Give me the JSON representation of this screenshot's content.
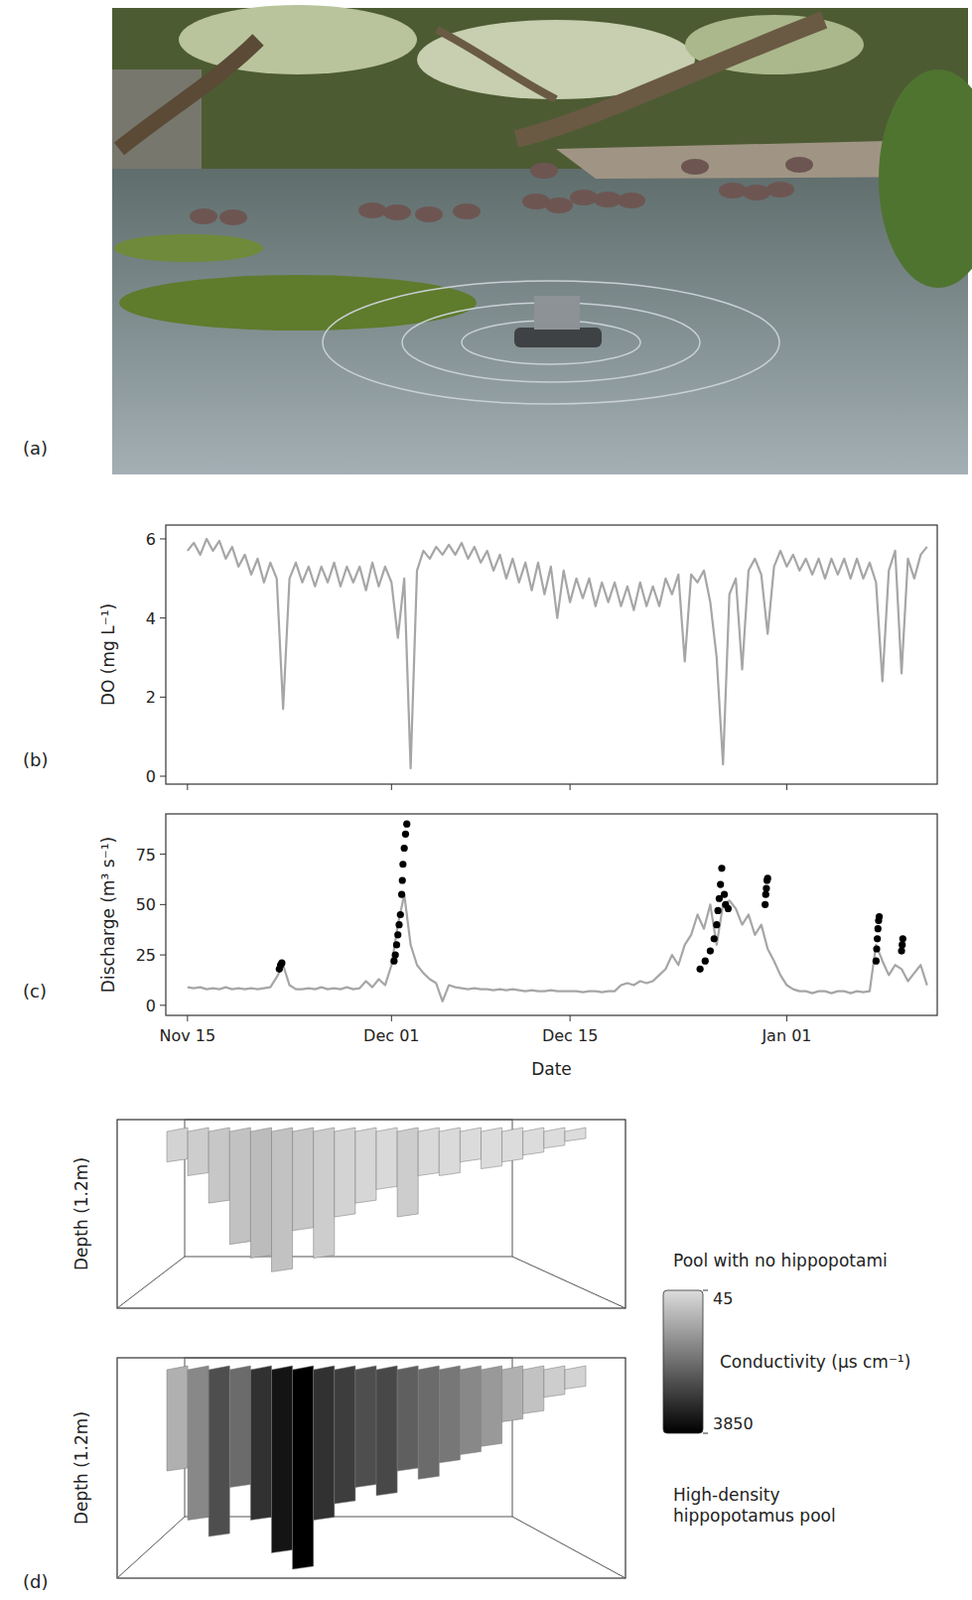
{
  "photo": {
    "panel": "(a)"
  },
  "chart_data": [
    {
      "type": "line",
      "panel": "(b)",
      "y_label": "DO (mg L⁻¹)",
      "xlim": [
        -1.7,
        58.8
      ],
      "xticks": [
        0,
        16,
        30,
        47
      ],
      "ylim": [
        -0.2,
        6.35
      ],
      "yticks": [
        0,
        2,
        4,
        6
      ],
      "tick_labels": "y",
      "series": [
        {
          "type": "line",
          "color": "#a6a6a6",
          "x": [
            0,
            0.5,
            1,
            1.5,
            2,
            2.5,
            3,
            3.5,
            4,
            4.5,
            5,
            5.5,
            6,
            6.5,
            7,
            7.5,
            8,
            8.5,
            9,
            9.5,
            10,
            10.5,
            11,
            11.5,
            12,
            12.5,
            13,
            13.5,
            14,
            14.5,
            15,
            15.5,
            16,
            16.5,
            17,
            17.5,
            18,
            18.5,
            19,
            19.5,
            20,
            20.5,
            21,
            21.5,
            22,
            22.5,
            23,
            23.5,
            24,
            24.5,
            25,
            25.5,
            26,
            26.5,
            27,
            27.5,
            28,
            28.5,
            29,
            29.5,
            30,
            30.5,
            31,
            31.5,
            32,
            32.5,
            33,
            33.5,
            34,
            34.5,
            35,
            35.5,
            36,
            36.5,
            37,
            37.5,
            38,
            38.5,
            39,
            39.5,
            40,
            40.5,
            41,
            41.5,
            42,
            42.5,
            43,
            43.5,
            44,
            44.5,
            45,
            45.5,
            46,
            46.5,
            47,
            47.5,
            48,
            48.5,
            49,
            49.5,
            50,
            50.5,
            51,
            51.5,
            52,
            52.5,
            53,
            53.5,
            54,
            54.5,
            55,
            55.5,
            56,
            56.5,
            57,
            57.5,
            58
          ],
          "values": [
            5.7,
            5.9,
            5.6,
            6.0,
            5.7,
            5.95,
            5.5,
            5.8,
            5.3,
            5.6,
            5.1,
            5.5,
            4.9,
            5.4,
            5.0,
            1.7,
            5.0,
            5.4,
            4.9,
            5.3,
            4.8,
            5.3,
            4.9,
            5.4,
            4.8,
            5.3,
            4.9,
            5.3,
            4.7,
            5.4,
            4.8,
            5.3,
            4.9,
            3.5,
            5.0,
            0.2,
            5.2,
            5.7,
            5.5,
            5.8,
            5.6,
            5.85,
            5.6,
            5.9,
            5.5,
            5.8,
            5.4,
            5.7,
            5.2,
            5.6,
            5.0,
            5.5,
            4.9,
            5.4,
            4.7,
            5.4,
            4.6,
            5.3,
            4.0,
            5.2,
            4.4,
            5.0,
            4.5,
            5.0,
            4.3,
            4.9,
            4.4,
            4.9,
            4.3,
            4.8,
            4.2,
            4.9,
            4.3,
            4.8,
            4.3,
            5.0,
            4.6,
            5.1,
            2.9,
            5.1,
            4.9,
            5.2,
            4.4,
            3.0,
            0.3,
            4.6,
            5.0,
            2.7,
            5.2,
            5.5,
            5.1,
            3.6,
            5.3,
            5.7,
            5.3,
            5.6,
            5.2,
            5.5,
            5.1,
            5.5,
            5.0,
            5.5,
            5.1,
            5.5,
            5.0,
            5.5,
            5.0,
            5.4,
            4.9,
            2.4,
            5.2,
            5.7,
            2.6,
            5.5,
            5.0,
            5.6,
            5.8
          ]
        }
      ]
    },
    {
      "type": "line",
      "panel": "(c)",
      "y_label": "Discharge (m³ s⁻¹)",
      "x_label": "Date",
      "xlim": [
        -1.7,
        58.8
      ],
      "xticks": [
        {
          "value": 0,
          "label": "Nov 15"
        },
        {
          "value": 16,
          "label": "Dec 01"
        },
        {
          "value": 30,
          "label": "Dec 15"
        },
        {
          "value": 47,
          "label": "Jan 01"
        }
      ],
      "ylim": [
        -5,
        95
      ],
      "yticks": [
        0,
        25,
        50,
        75
      ],
      "series": [
        {
          "type": "line",
          "color": "#a6a6a6",
          "x": [
            0,
            0.5,
            1,
            1.5,
            2,
            2.5,
            3,
            3.5,
            4,
            4.5,
            5,
            5.5,
            6,
            6.5,
            7,
            7.5,
            8,
            8.5,
            9,
            9.5,
            10,
            10.5,
            11,
            11.5,
            12,
            12.5,
            13,
            13.5,
            14,
            14.5,
            15,
            15.5,
            16,
            16.5,
            17,
            17.5,
            18,
            18.5,
            19,
            19.5,
            20,
            20.5,
            21,
            21.5,
            22,
            22.5,
            23,
            23.5,
            24,
            24.5,
            25,
            25.5,
            26,
            26.5,
            27,
            27.5,
            28,
            28.5,
            29,
            29.5,
            30,
            30.5,
            31,
            31.5,
            32,
            32.5,
            33,
            33.5,
            34,
            34.5,
            35,
            35.5,
            36,
            36.5,
            37,
            37.5,
            38,
            38.5,
            39,
            39.5,
            40,
            40.5,
            41,
            41.5,
            42,
            42.5,
            43,
            43.5,
            44,
            44.5,
            45,
            45.5,
            46,
            46.5,
            47,
            47.5,
            48,
            48.5,
            49,
            49.5,
            50,
            50.5,
            51,
            51.5,
            52,
            52.5,
            53,
            53.5,
            54,
            54.5,
            55,
            55.5,
            56,
            56.5,
            57,
            57.5,
            58
          ],
          "values": [
            9,
            8.5,
            9,
            8,
            8.5,
            8,
            9,
            8,
            8.5,
            8,
            8.5,
            8,
            8.5,
            9,
            14,
            20,
            10,
            8,
            8,
            8.5,
            8,
            9,
            8,
            8.5,
            8,
            9,
            8,
            8.5,
            12,
            9,
            13,
            10,
            20,
            40,
            55,
            30,
            20,
            16,
            13,
            11,
            2,
            10,
            9,
            8.5,
            8,
            8.5,
            8,
            8,
            7.5,
            8,
            7.5,
            8,
            7.5,
            7,
            7.5,
            7,
            7,
            7.5,
            7,
            7,
            7,
            7,
            6.5,
            7,
            7,
            6.5,
            7,
            7,
            10,
            11,
            10,
            12,
            11,
            12,
            15,
            18,
            25,
            20,
            30,
            35,
            45,
            38,
            50,
            30,
            50,
            52,
            48,
            40,
            45,
            35,
            40,
            28,
            22,
            15,
            10,
            8,
            7,
            7,
            6,
            7,
            7,
            6,
            7,
            7,
            6,
            7,
            6.5,
            7,
            30,
            22,
            15,
            20,
            18,
            12,
            16,
            20,
            10
          ]
        },
        {
          "type": "scatter",
          "color": "#000000",
          "marker": "circle",
          "x": [
            7.2,
            7.3,
            7.4,
            16.2,
            16.3,
            16.4,
            16.5,
            16.6,
            16.7,
            16.8,
            16.85,
            16.9,
            17.0,
            17.1,
            17.2,
            40.2,
            40.6,
            41.0,
            41.3,
            41.5,
            41.6,
            41.7,
            41.8,
            41.9,
            42.1,
            42.2,
            42.4,
            45.3,
            45.35,
            45.4,
            45.45,
            45.5,
            54.0,
            54.05,
            54.1,
            54.15,
            54.2,
            54.25,
            56.0,
            56.05,
            56.1
          ],
          "values": [
            18,
            20,
            21,
            22,
            25,
            30,
            35,
            40,
            45,
            55,
            62,
            70,
            78,
            85,
            90,
            18,
            22,
            27,
            33,
            40,
            47,
            53,
            60,
            68,
            55,
            50,
            48,
            50,
            55,
            58,
            62,
            63,
            22,
            28,
            33,
            38,
            42,
            44,
            27,
            30,
            33
          ]
        }
      ]
    },
    {
      "type": "surface",
      "panel": "(d)",
      "z_label": "Depth (1.2m)",
      "zlim": [
        0,
        1.2
      ],
      "colorbar": {
        "title": "Conductivity (μs cm⁻¹)",
        "range": [
          45,
          3850
        ],
        "ticks": [
          45,
          3850
        ]
      },
      "series": [
        {
          "name": "Pool with no hippopotami",
          "depth": [
            0.2,
            0.3,
            0.5,
            0.8,
            0.9,
            1.0,
            0.7,
            0.9,
            0.6,
            0.5,
            0.4,
            0.6,
            0.3,
            0.3,
            0.2,
            0.25,
            0.2,
            0.15,
            0.1,
            0.05
          ],
          "conductivity": [
            200,
            300,
            400,
            500,
            600,
            500,
            400,
            300,
            200,
            150,
            100,
            300,
            100,
            80,
            60,
            50,
            50,
            45,
            45,
            45
          ]
        },
        {
          "name": "High-density hippopotamus pool",
          "depth": [
            0.6,
            0.9,
            1.0,
            0.7,
            0.9,
            1.1,
            1.2,
            0.9,
            0.8,
            0.7,
            0.75,
            0.6,
            0.65,
            0.55,
            0.5,
            0.45,
            0.3,
            0.25,
            0.15,
            0.1
          ],
          "conductivity": [
            800,
            1500,
            2500,
            2000,
            3000,
            3500,
            3850,
            3000,
            2800,
            2500,
            2600,
            2200,
            2000,
            1800,
            1500,
            1200,
            800,
            500,
            300,
            200
          ]
        }
      ]
    }
  ]
}
